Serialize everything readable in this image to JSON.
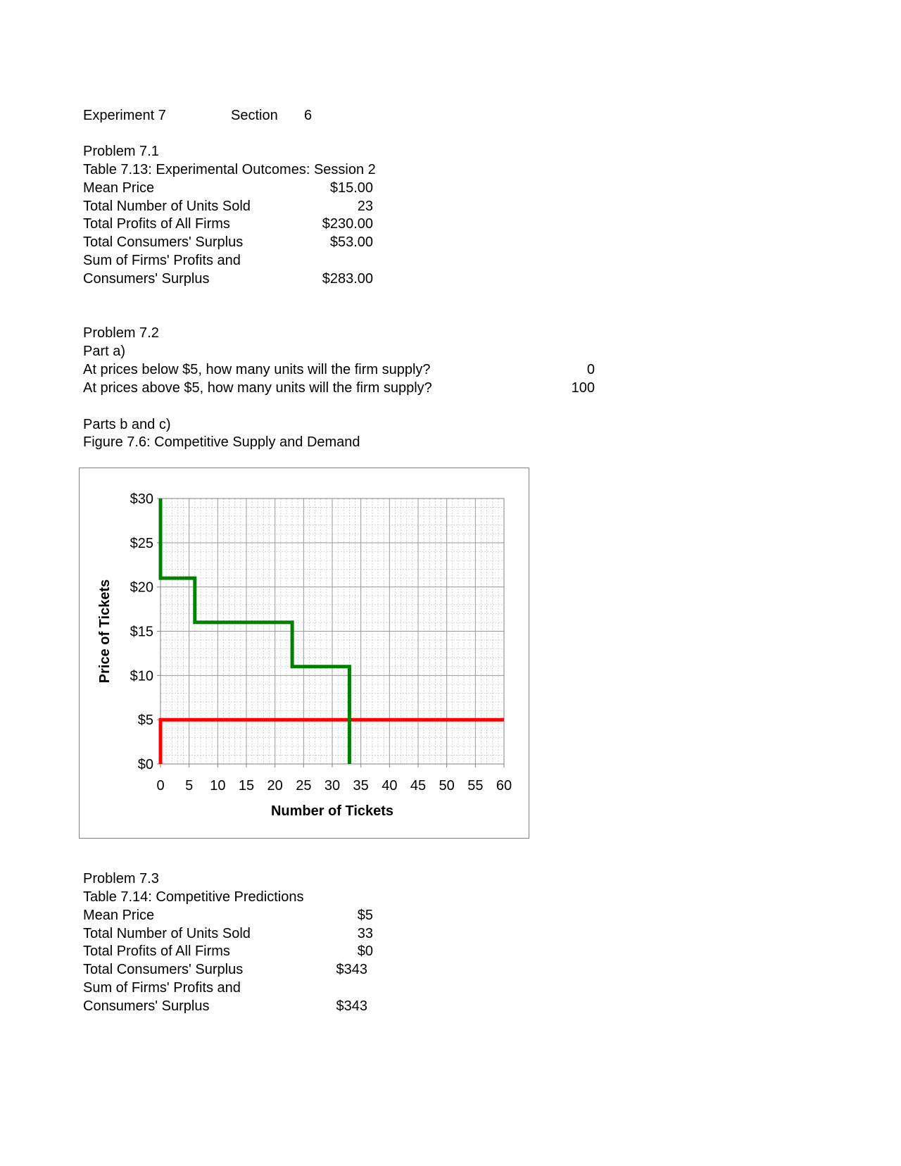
{
  "header": {
    "experiment": "Experiment 7",
    "section_label": "Section",
    "section_value": "6"
  },
  "p1": {
    "title": "Problem 7.1",
    "table_title": "Table 7.13:  Experimental Outcomes: Session 2",
    "rows": [
      {
        "label": "Mean Price",
        "value": "$15.00"
      },
      {
        "label": "Total Number of Units Sold",
        "value": "23"
      },
      {
        "label": "Total Profits of All Firms",
        "value": "$230.00"
      },
      {
        "label": "Total Consumers' Surplus",
        "value": "$53.00"
      }
    ],
    "sum_label_1": "Sum of Firms' Profits and",
    "sum_label_2": "Consumers' Surplus",
    "sum_value": "$283.00"
  },
  "p2": {
    "title": "Problem 7.2",
    "part_a": "Part a)",
    "q1": "At prices below $5, how many units will the firm supply?",
    "a1": "0",
    "q2": "At prices above $5, how many units will the firm supply?",
    "a2": "100",
    "parts_bc": "Parts b and c)",
    "figure_title": "Figure 7.6:  Competitive Supply and Demand"
  },
  "p3": {
    "title": "Problem 7.3",
    "table_title": "Table 7.14:  Competitive Predictions",
    "rows": [
      {
        "label": "Mean Price",
        "value": "$5"
      },
      {
        "label": "Total Number of Units Sold",
        "value": "33"
      },
      {
        "label": "Total Profits of All Firms",
        "value": "$0"
      },
      {
        "label": "Total Consumers' Surplus",
        "value": "$343"
      }
    ],
    "sum_label_1": "Sum of Firms' Profits and",
    "sum_label_2": "Consumers' Surplus",
    "sum_value": "$343"
  },
  "chart_data": {
    "type": "line",
    "title": "",
    "xlabel": "Number of Tickets",
    "ylabel": "Price of Tickets",
    "xlim": [
      0,
      60
    ],
    "ylim": [
      0,
      30
    ],
    "x_ticks": [
      "0",
      "5",
      "10",
      "15",
      "20",
      "25",
      "30",
      "35",
      "40",
      "45",
      "50",
      "55",
      "60"
    ],
    "y_ticks": [
      "$0",
      "$5",
      "$10",
      "$15",
      "$20",
      "$25",
      "$30"
    ],
    "grid": true,
    "legend": "none",
    "series": [
      {
        "color": "#008000",
        "points": [
          [
            0,
            30
          ],
          [
            0,
            21
          ],
          [
            6,
            21
          ],
          [
            6,
            16
          ],
          [
            23,
            16
          ],
          [
            23,
            11
          ],
          [
            33,
            11
          ],
          [
            33,
            0
          ]
        ]
      },
      {
        "color": "#ff0000",
        "points": [
          [
            0,
            0
          ],
          [
            0,
            5
          ],
          [
            60,
            5
          ]
        ]
      }
    ]
  }
}
